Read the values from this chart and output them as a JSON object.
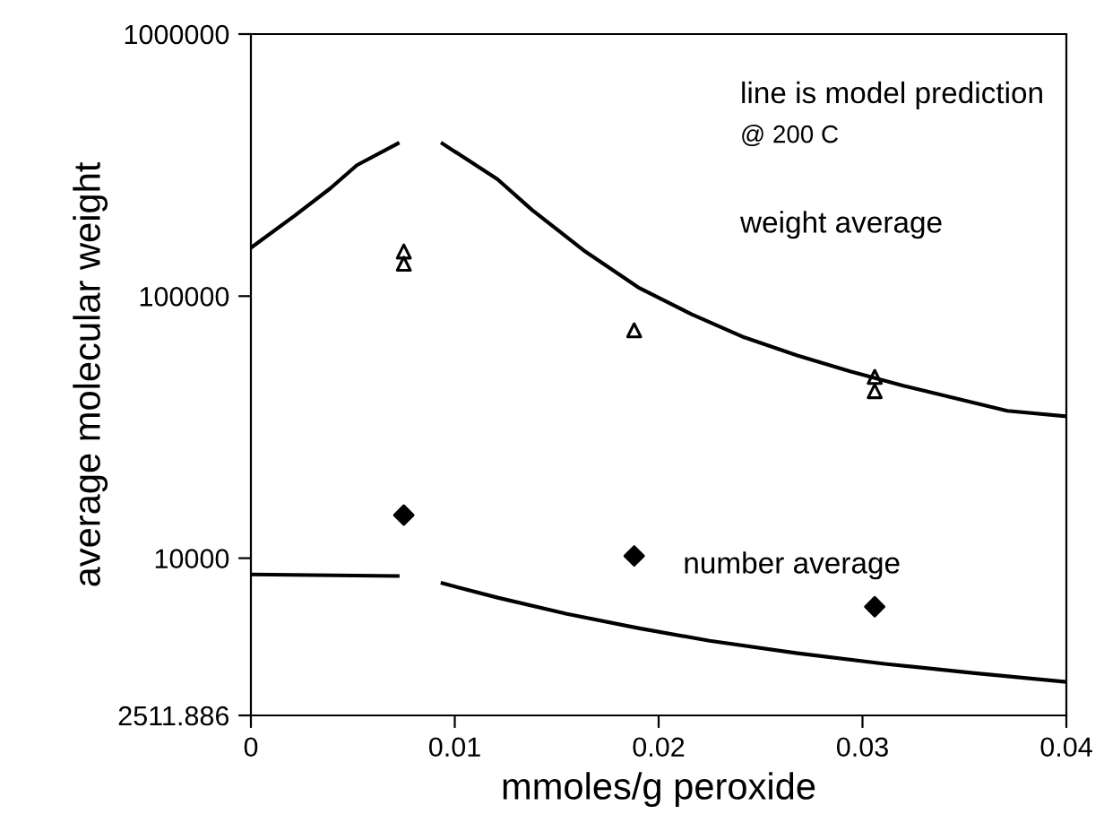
{
  "chart_data": {
    "type": "line",
    "xlabel": "mmoles/g peroxide",
    "ylabel": "average molecular weight",
    "annotations": [
      "line is model prediction",
      "@ 200 C",
      "weight average",
      "number average"
    ],
    "log": "y",
    "xlim": [
      0,
      0.04
    ],
    "xticks": [
      0,
      0.01,
      0.02,
      0.03,
      0.04
    ],
    "ylim": [
      2511.886,
      1000000
    ],
    "yticks": [
      2511.886,
      10000,
      100000,
      1000000
    ],
    "grid": false,
    "series": [
      {
        "color": "#000000",
        "marker": "none",
        "line_style": "solid",
        "x": [
          0,
          0.00216,
          0.0039,
          0.0052,
          0.0072,
          0.0083,
          0.0094,
          0.0121,
          0.0138,
          0.0164,
          0.019,
          0.0216,
          0.0242,
          0.0268,
          0.0294,
          0.032,
          0.0346,
          0.0371,
          0.04
        ],
        "values": [
          153000,
          203000,
          258000,
          316000,
          382000,
          null,
          382000,
          279000,
          213000,
          148000,
          108000,
          85400,
          69600,
          59400,
          51600,
          45500,
          40700,
          36500,
          34800
        ]
      },
      {
        "color": "#000000",
        "marker": "none",
        "line_style": "solid",
        "x": [
          0,
          0.0072,
          0.0083,
          0.0094,
          0.0121,
          0.0155,
          0.019,
          0.0225,
          0.0268,
          0.0311,
          0.0354,
          0.04
        ],
        "values": [
          8670,
          8550,
          null,
          8020,
          7070,
          6130,
          5410,
          4840,
          4340,
          3950,
          3650,
          3370
        ]
      },
      {
        "type": "scatter",
        "color": "#000000",
        "marker": "triangle",
        "x": [
          0.0075,
          0.0075,
          0.0188,
          0.0306,
          0.0306
        ],
        "values": [
          148000,
          133000,
          74100,
          49200,
          43400
        ]
      },
      {
        "type": "scatter",
        "color": "#000000",
        "marker": "diamond",
        "x": [
          0.0075,
          0.0188,
          0.0306
        ],
        "values": [
          14600,
          10200,
          6530
        ]
      }
    ]
  }
}
